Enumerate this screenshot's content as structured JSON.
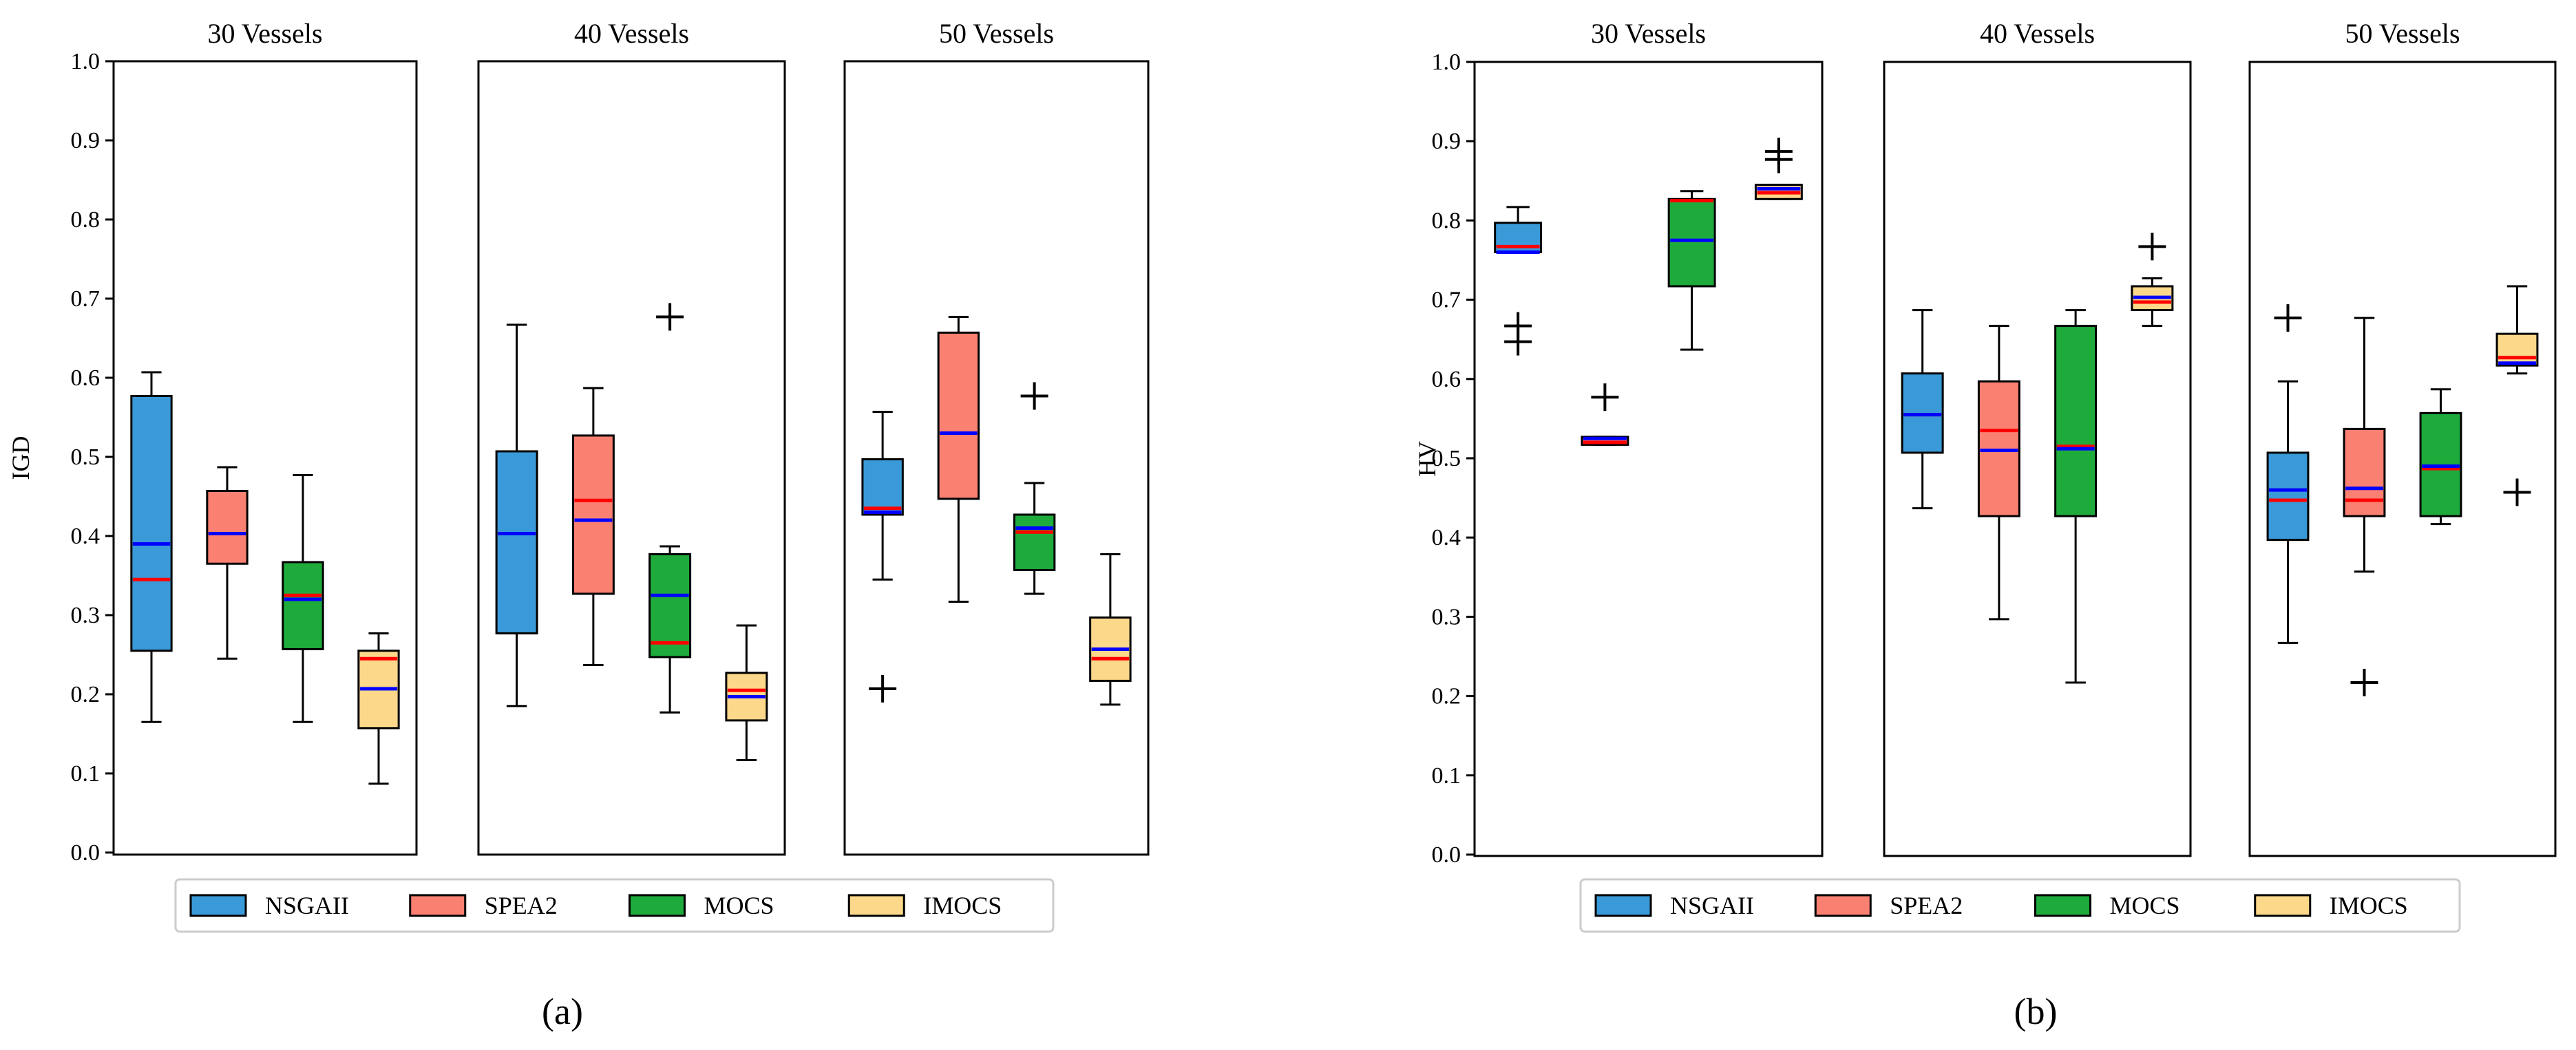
{
  "chart_data": [
    {
      "type": "box",
      "figure_label": "(a)",
      "ylabel": "IGD",
      "ylim": [
        0.0,
        1.0
      ],
      "yticks": [
        "0.0",
        "0.1",
        "0.2",
        "0.3",
        "0.4",
        "0.5",
        "0.6",
        "0.7",
        "0.8",
        "0.9",
        "1.0"
      ],
      "panels": [
        {
          "title": "30 Vessels",
          "boxes": [
            {
              "series": "NSGAII",
              "whislo": 0.165,
              "q1": 0.255,
              "median": 0.345,
              "mean": 0.39,
              "q3": 0.577,
              "whishi": 0.607,
              "fliers": []
            },
            {
              "series": "SPEA2",
              "whislo": 0.245,
              "q1": 0.365,
              "median": 0.403,
              "mean": 0.403,
              "q3": 0.457,
              "whishi": 0.487,
              "fliers": []
            },
            {
              "series": "MOCS",
              "whislo": 0.165,
              "q1": 0.257,
              "median": 0.325,
              "mean": 0.32,
              "q3": 0.367,
              "whishi": 0.477,
              "fliers": []
            },
            {
              "series": "IMOCS",
              "whislo": 0.087,
              "q1": 0.157,
              "median": 0.245,
              "mean": 0.207,
              "q3": 0.255,
              "whishi": 0.277,
              "fliers": []
            }
          ]
        },
        {
          "title": "40 Vessels",
          "boxes": [
            {
              "series": "NSGAII",
              "whislo": 0.185,
              "q1": 0.277,
              "median": 0.403,
              "mean": 0.403,
              "q3": 0.507,
              "whishi": 0.667,
              "fliers": []
            },
            {
              "series": "SPEA2",
              "whislo": 0.237,
              "q1": 0.327,
              "median": 0.445,
              "mean": 0.42,
              "q3": 0.527,
              "whishi": 0.587,
              "fliers": []
            },
            {
              "series": "MOCS",
              "whislo": 0.177,
              "q1": 0.247,
              "median": 0.265,
              "mean": 0.325,
              "q3": 0.377,
              "whishi": 0.387,
              "fliers": [
                0.677
              ]
            },
            {
              "series": "IMOCS",
              "whislo": 0.117,
              "q1": 0.167,
              "median": 0.205,
              "mean": 0.197,
              "q3": 0.227,
              "whishi": 0.287,
              "fliers": []
            }
          ]
        },
        {
          "title": "50 Vessels",
          "boxes": [
            {
              "series": "NSGAII",
              "whislo": 0.345,
              "q1": 0.427,
              "median": 0.435,
              "mean": 0.43,
              "q3": 0.497,
              "whishi": 0.557,
              "fliers": [
                0.207
              ]
            },
            {
              "series": "SPEA2",
              "whislo": 0.317,
              "q1": 0.447,
              "median": 0.53,
              "mean": 0.53,
              "q3": 0.657,
              "whishi": 0.677,
              "fliers": []
            },
            {
              "series": "MOCS",
              "whislo": 0.327,
              "q1": 0.357,
              "median": 0.405,
              "mean": 0.41,
              "q3": 0.427,
              "whishi": 0.467,
              "fliers": [
                0.577
              ]
            },
            {
              "series": "IMOCS",
              "whislo": 0.187,
              "q1": 0.217,
              "median": 0.245,
              "mean": 0.257,
              "q3": 0.297,
              "whishi": 0.377,
              "fliers": []
            }
          ]
        }
      ]
    },
    {
      "type": "box",
      "figure_label": "(b)",
      "ylabel": "HV",
      "ylim": [
        0.0,
        1.0
      ],
      "yticks": [
        "0.0",
        "0.1",
        "0.2",
        "0.3",
        "0.4",
        "0.5",
        "0.6",
        "0.7",
        "0.8",
        "0.9",
        "1.0"
      ],
      "panels": [
        {
          "title": "30 Vessels",
          "boxes": [
            {
              "series": "NSGAII",
              "whislo": 0.76,
              "q1": 0.76,
              "median": 0.767,
              "mean": 0.76,
              "q3": 0.797,
              "whishi": 0.817,
              "fliers": [
                0.667,
                0.647
              ]
            },
            {
              "series": "SPEA2",
              "whislo": 0.517,
              "q1": 0.517,
              "median": 0.52,
              "mean": 0.525,
              "q3": 0.527,
              "whishi": 0.527,
              "fliers": [
                0.577
              ]
            },
            {
              "series": "MOCS",
              "whislo": 0.637,
              "q1": 0.717,
              "median": 0.825,
              "mean": 0.775,
              "q3": 0.827,
              "whishi": 0.837,
              "fliers": []
            },
            {
              "series": "IMOCS",
              "whislo": 0.827,
              "q1": 0.827,
              "median": 0.835,
              "mean": 0.84,
              "q3": 0.845,
              "whishi": 0.845,
              "fliers": [
                0.887,
                0.877
              ]
            }
          ]
        },
        {
          "title": "40 Vessels",
          "boxes": [
            {
              "series": "NSGAII",
              "whislo": 0.437,
              "q1": 0.507,
              "median": 0.555,
              "mean": 0.555,
              "q3": 0.607,
              "whishi": 0.687,
              "fliers": []
            },
            {
              "series": "SPEA2",
              "whislo": 0.297,
              "q1": 0.427,
              "median": 0.535,
              "mean": 0.51,
              "q3": 0.597,
              "whishi": 0.667,
              "fliers": []
            },
            {
              "series": "MOCS",
              "whislo": 0.217,
              "q1": 0.427,
              "median": 0.515,
              "mean": 0.512,
              "q3": 0.667,
              "whishi": 0.687,
              "fliers": []
            },
            {
              "series": "IMOCS",
              "whislo": 0.667,
              "q1": 0.687,
              "median": 0.697,
              "mean": 0.703,
              "q3": 0.717,
              "whishi": 0.727,
              "fliers": [
                0.767
              ]
            }
          ]
        },
        {
          "title": "50 Vessels",
          "boxes": [
            {
              "series": "NSGAII",
              "whislo": 0.267,
              "q1": 0.397,
              "median": 0.447,
              "mean": 0.46,
              "q3": 0.507,
              "whishi": 0.597,
              "fliers": [
                0.677
              ]
            },
            {
              "series": "SPEA2",
              "whislo": 0.357,
              "q1": 0.427,
              "median": 0.447,
              "mean": 0.462,
              "q3": 0.537,
              "whishi": 0.677,
              "fliers": [
                0.217
              ]
            },
            {
              "series": "MOCS",
              "whislo": 0.417,
              "q1": 0.427,
              "median": 0.487,
              "mean": 0.49,
              "q3": 0.557,
              "whishi": 0.587,
              "fliers": []
            },
            {
              "series": "IMOCS",
              "whislo": 0.607,
              "q1": 0.617,
              "median": 0.627,
              "mean": 0.62,
              "q3": 0.657,
              "whishi": 0.717,
              "fliers": [
                0.457
              ]
            }
          ]
        }
      ]
    }
  ],
  "legend": {
    "items": [
      {
        "name": "NSGAII",
        "color": "#3a9ad9"
      },
      {
        "name": "SPEA2",
        "color": "#fa8072"
      },
      {
        "name": "MOCS",
        "color": "#1eab3c"
      },
      {
        "name": "IMOCS",
        "color": "#fcd88a"
      }
    ]
  },
  "colors": {
    "median_line": "#ff0000",
    "mean_line": "#0000ff"
  }
}
